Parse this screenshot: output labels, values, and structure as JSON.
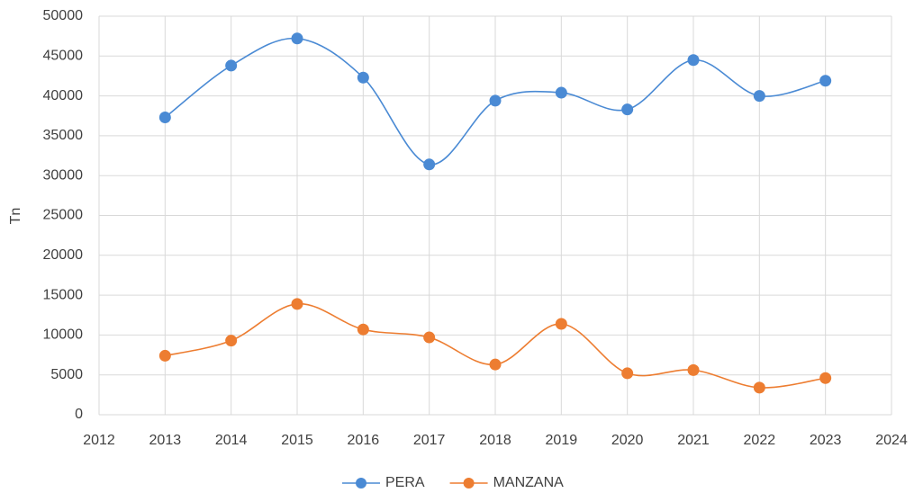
{
  "chart_data": {
    "type": "line",
    "smooth": true,
    "y_label": "Tn",
    "x": [
      2013,
      2014,
      2015,
      2016,
      2017,
      2018,
      2019,
      2020,
      2021,
      2022,
      2023
    ],
    "series": [
      {
        "name": "PERA",
        "color": "#4a8ad4",
        "values": [
          37300,
          43800,
          47200,
          42300,
          31400,
          39400,
          40400,
          38300,
          44500,
          40000,
          41900
        ]
      },
      {
        "name": "MANZANA",
        "color": "#ed7d31",
        "values": [
          7400,
          9300,
          13900,
          10700,
          9700,
          6300,
          11400,
          5200,
          5600,
          3400,
          4600
        ]
      }
    ],
    "xlim": [
      2012,
      2024
    ],
    "xticks": [
      2012,
      2013,
      2014,
      2015,
      2016,
      2017,
      2018,
      2019,
      2020,
      2021,
      2022,
      2023,
      2024
    ],
    "ylim": [
      0,
      50000
    ],
    "yticks": [
      0,
      5000,
      10000,
      15000,
      20000,
      25000,
      30000,
      35000,
      40000,
      45000,
      50000
    ],
    "grid": true,
    "legend": "bottom"
  }
}
